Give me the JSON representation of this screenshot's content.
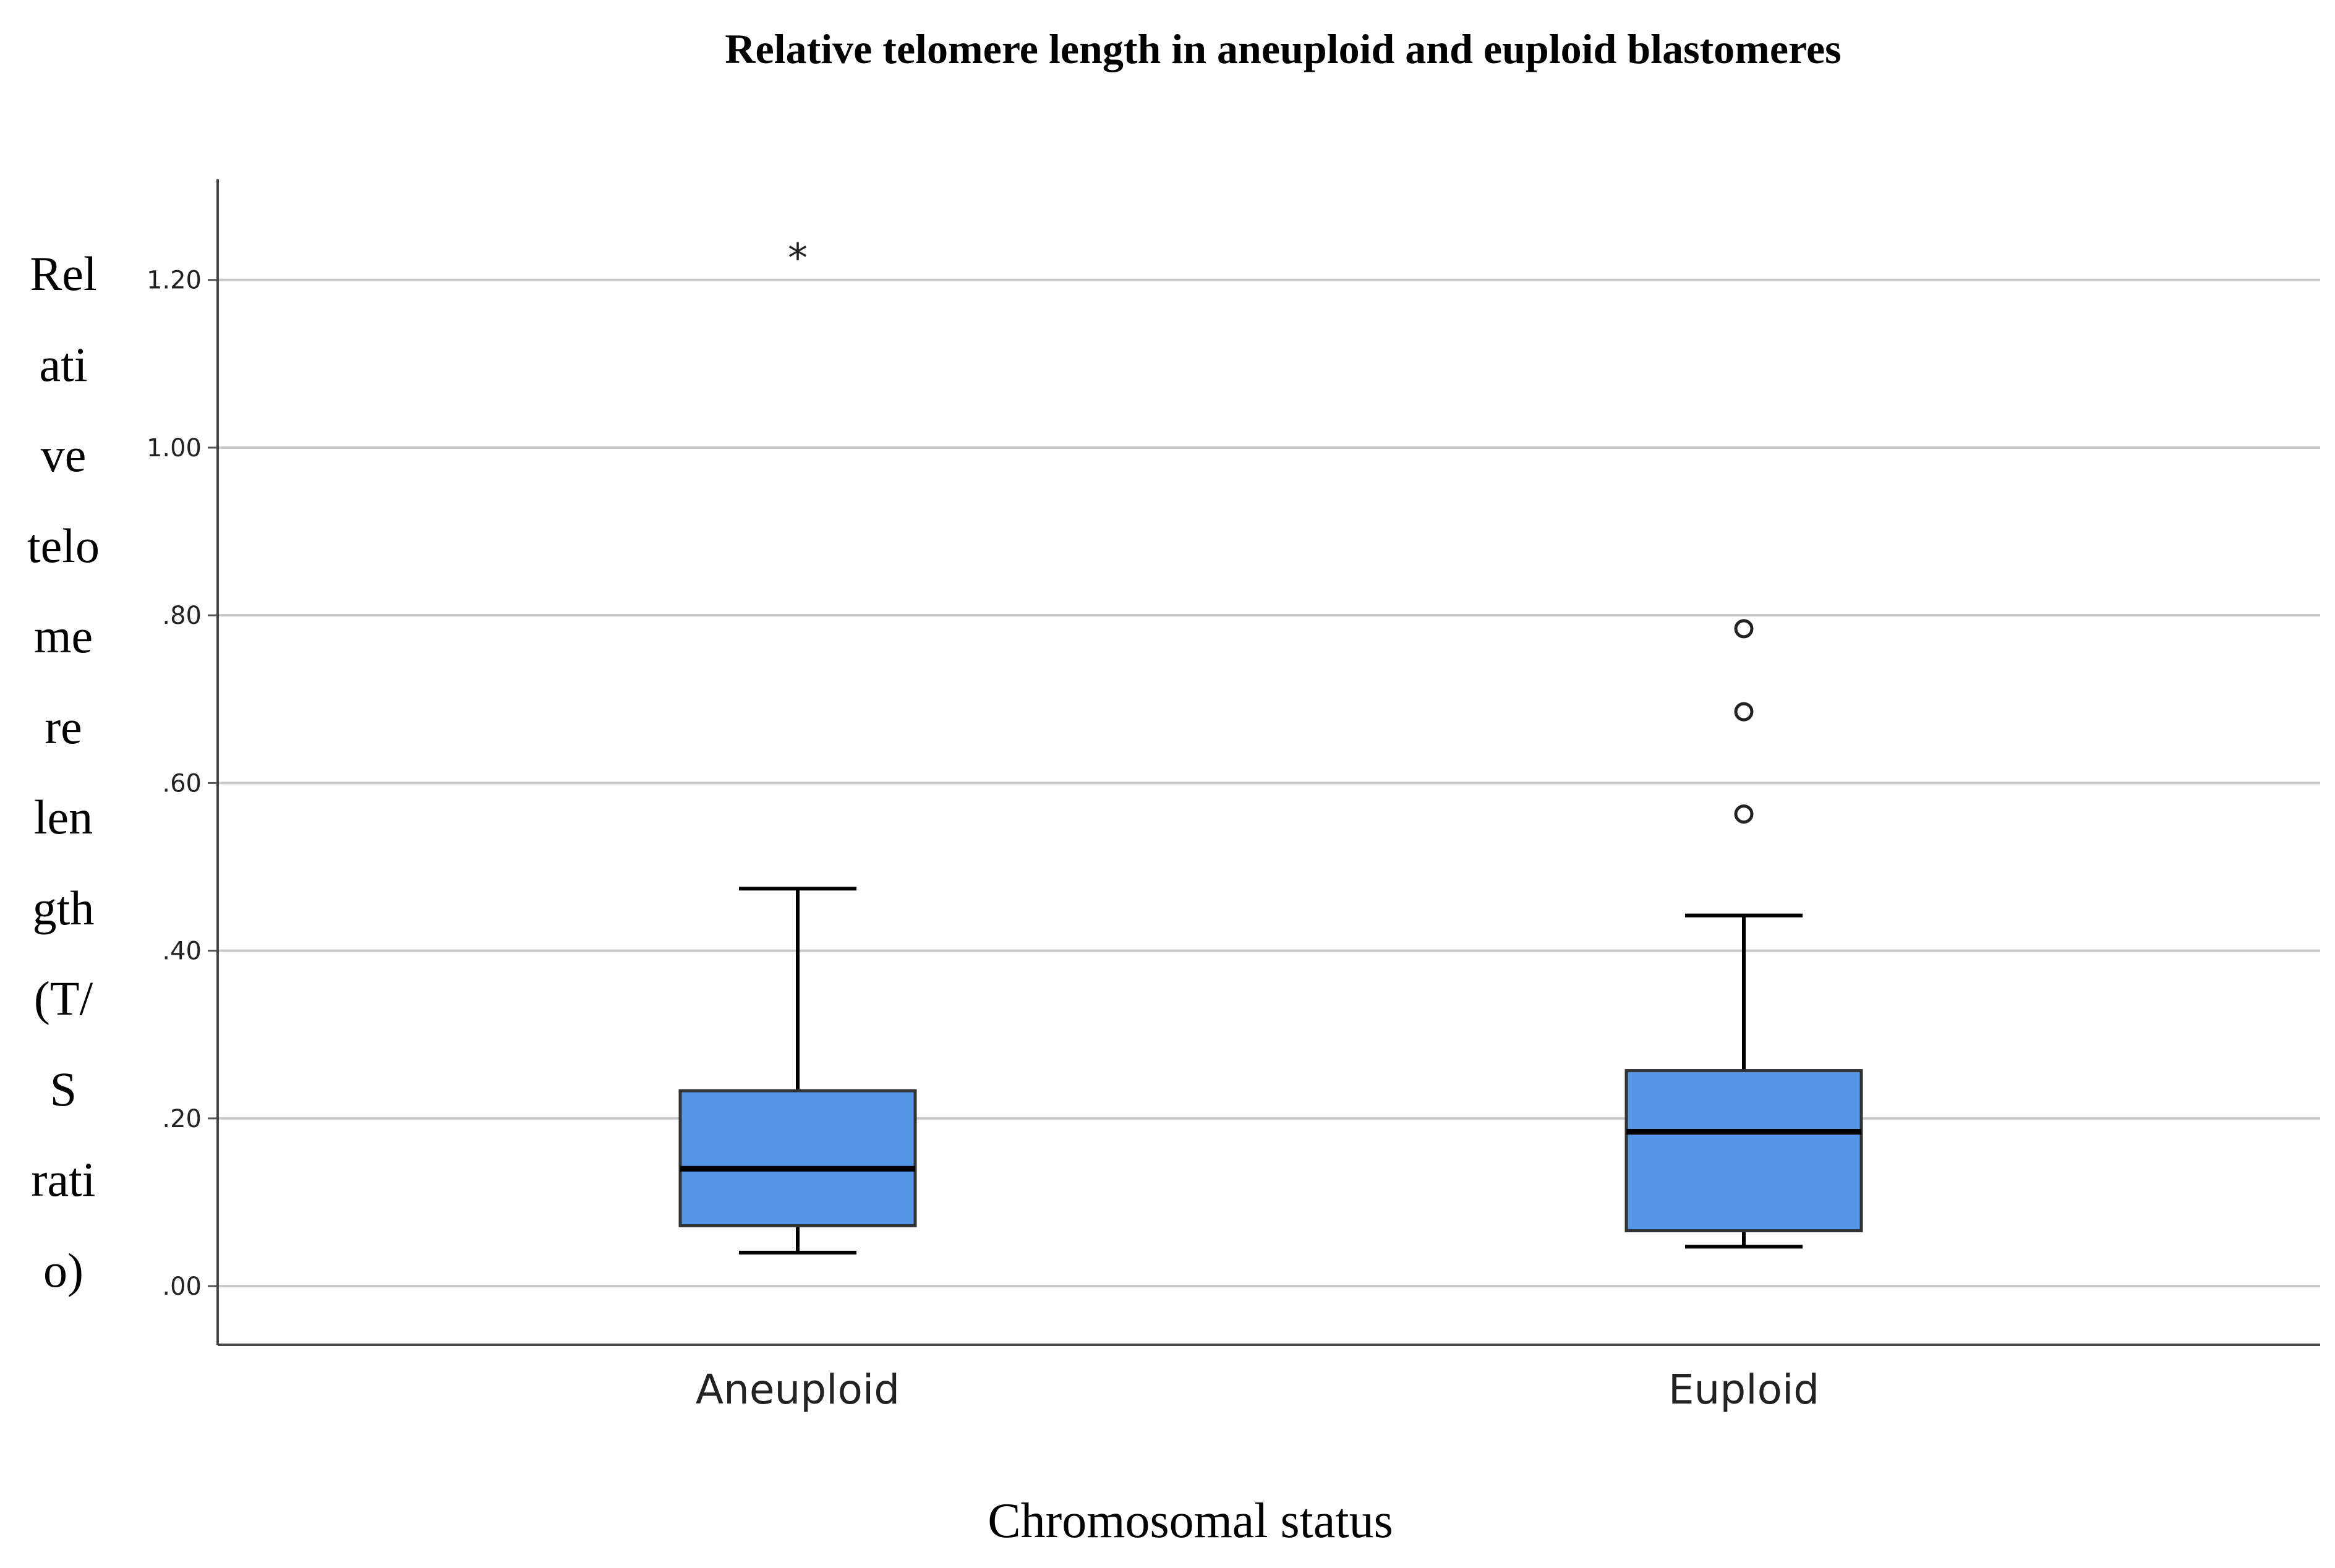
{
  "chart_data": {
    "type": "box",
    "title": "Relative telomere length in aneuploid and euploid blastomeres",
    "xlabel": "Chromosomal status",
    "ylabel_lines": [
      "Rel",
      "ati",
      "ve",
      "telo",
      "me",
      "re",
      "len",
      "gth",
      "(T/",
      "S",
      "rati",
      "o)"
    ],
    "ylim": [
      -0.07,
      1.32
    ],
    "yticks": [
      {
        "value": 0.0,
        "label": ".00"
      },
      {
        "value": 0.2,
        "label": ".20"
      },
      {
        "value": 0.4,
        "label": ".40"
      },
      {
        "value": 0.6,
        "label": ".60"
      },
      {
        "value": 0.8,
        "label": ".80"
      },
      {
        "value": 1.0,
        "label": "1.00"
      },
      {
        "value": 1.2,
        "label": "1.20"
      }
    ],
    "grid": true,
    "box_color": "#5596e6",
    "categories": [
      "Aneuploid",
      "Euploid"
    ],
    "boxes": [
      {
        "category": "Aneuploid",
        "whisker_low": 0.04,
        "q1": 0.072,
        "median": 0.14,
        "q3": 0.233,
        "whisker_high": 0.474,
        "outliers": [
          {
            "value": 1.235,
            "marker": "*"
          }
        ]
      },
      {
        "category": "Euploid",
        "whisker_low": 0.047,
        "q1": 0.066,
        "median": 0.184,
        "q3": 0.257,
        "whisker_high": 0.442,
        "outliers": [
          {
            "value": 0.784,
            "marker": "o"
          },
          {
            "value": 0.685,
            "marker": "o"
          },
          {
            "value": 0.563,
            "marker": "o"
          }
        ]
      }
    ]
  }
}
